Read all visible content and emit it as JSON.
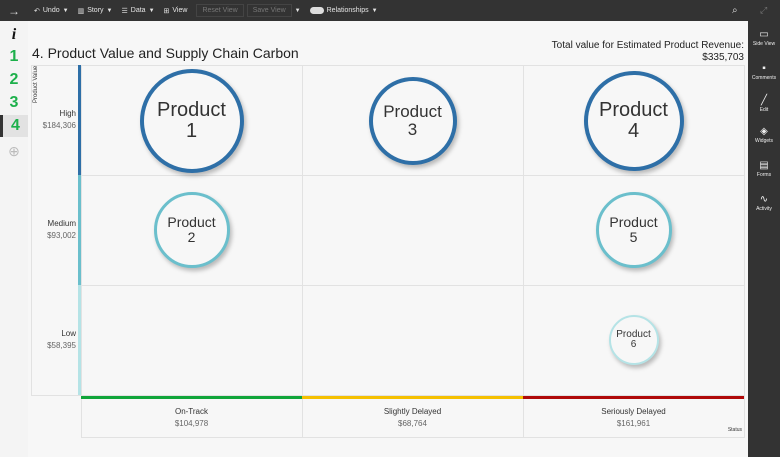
{
  "toolbar": {
    "undo": "Undo",
    "story": "Story",
    "data": "Data",
    "view": "View",
    "reset_view": "Reset View",
    "save_view": "Save View",
    "relationships": "Relationships"
  },
  "leftnav": {
    "info": "i",
    "pages": [
      "1",
      "2",
      "3",
      "4"
    ],
    "active_page": "4"
  },
  "rightbar": {
    "items": [
      "Side View",
      "Comments",
      "Edit",
      "Widgets",
      "Forms",
      "Activity"
    ]
  },
  "title": "4. Product Value and Supply Chain Carbon",
  "total": {
    "label": "Total value for Estimated Product Revenue:",
    "value": "$335,703"
  },
  "y_axis_label": "Product Value",
  "x_axis_label": "Status",
  "rows": [
    {
      "label": "High",
      "value": "$184,306",
      "color": "#2e6fa7"
    },
    {
      "label": "Medium",
      "value": "$93,002",
      "color": "#6bbfcc"
    },
    {
      "label": "Low",
      "value": "$58,395",
      "color": "#b5e3e6"
    }
  ],
  "columns": [
    {
      "label": "On-Track",
      "value": "$104,978",
      "color": "#10a53a"
    },
    {
      "label": "Slightly Delayed",
      "value": "$68,764",
      "color": "#f5c000"
    },
    {
      "label": "Seriously Delayed",
      "value": "$161,961",
      "color": "#b00a0a"
    }
  ],
  "products": [
    {
      "name": "Product",
      "num": "1",
      "row": "High",
      "col": "On-Track"
    },
    {
      "name": "Product",
      "num": "3",
      "row": "High",
      "col": "Slightly Delayed"
    },
    {
      "name": "Product",
      "num": "4",
      "row": "High",
      "col": "Seriously Delayed"
    },
    {
      "name": "Product",
      "num": "2",
      "row": "Medium",
      "col": "On-Track"
    },
    {
      "name": "Product",
      "num": "5",
      "row": "Medium",
      "col": "Seriously Delayed"
    },
    {
      "name": "Product",
      "num": "6",
      "row": "Low",
      "col": "Seriously Delayed"
    }
  ]
}
